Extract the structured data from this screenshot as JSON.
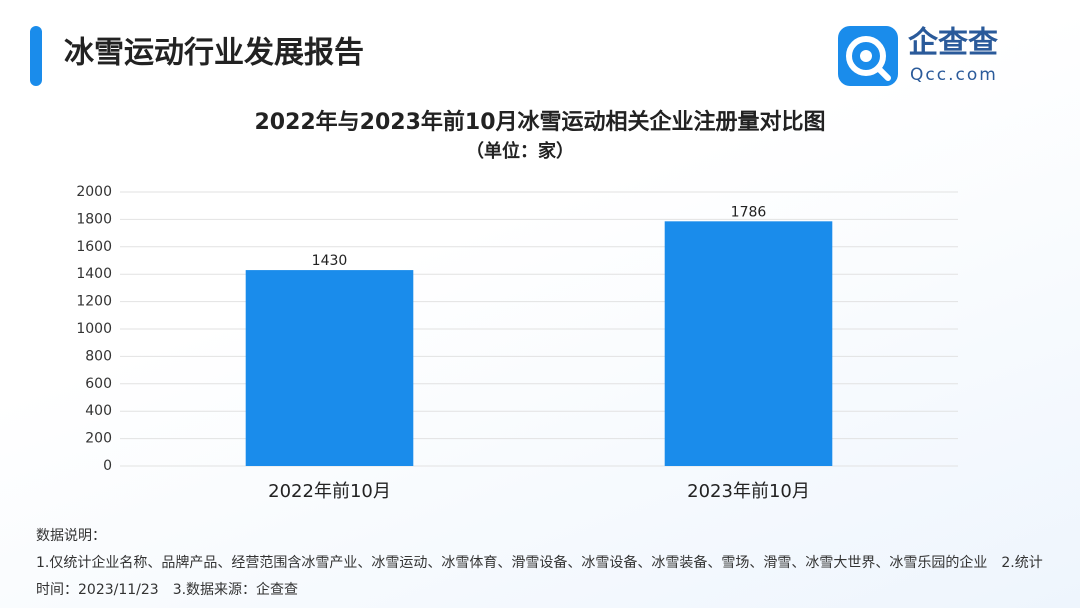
{
  "header": {
    "title": "冰雪运动行业发展报告",
    "logo_name": "企查查",
    "logo_domain": "Qcc.com"
  },
  "chart_data": {
    "type": "bar",
    "title": "2022年与2023年前10月冰雪运动相关企业注册量对比图",
    "subtitle": "（单位：家）",
    "categories": [
      "2022年前10月",
      "2023年前10月"
    ],
    "values": [
      1430,
      1786
    ],
    "color": "#1a8ceb",
    "ylim": [
      0,
      2000
    ],
    "yticks": [
      0,
      200,
      400,
      600,
      800,
      1000,
      1200,
      1400,
      1600,
      1800,
      2000
    ],
    "grid": true
  },
  "notes": {
    "heading": "数据说明：",
    "text": "1.仅统计企业名称、品牌产品、经营范围含冰雪产业、冰雪运动、冰雪体育、滑雪设备、冰雪设备、冰雪装备、雪场、滑雪、冰雪大世界、冰雪乐园的企业　2.统计时间：2023/11/23　3.数据来源：企查查"
  }
}
